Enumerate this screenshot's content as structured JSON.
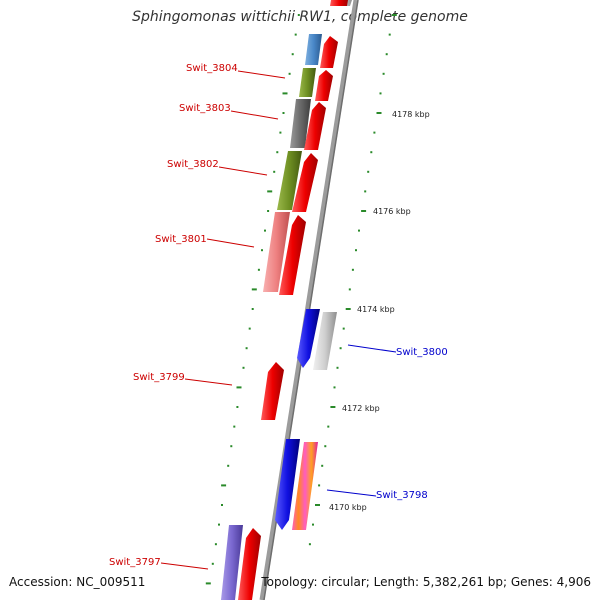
{
  "title": "Sphingomonas wittichii RW1, complete genome",
  "footer": {
    "accession": "Accession: NC_009511",
    "summary": "Topology: circular; Length: 5,382,261 bp; Genes: 4,906"
  },
  "colors": {
    "forward_gene": "#ee0000",
    "reverse_gene": "#1010e0",
    "label_left": "#cc0000",
    "label_right": "#0000cc",
    "tick": "#2a8a2a",
    "backbone": "#8c8c8c"
  },
  "scale": {
    "labels": [
      "4178 kbp",
      "4176 kbp",
      "4174 kbp",
      "4172 kbp",
      "4170 kbp"
    ]
  },
  "genes": [
    {
      "label": "Swit_3804",
      "side": "left"
    },
    {
      "label": "Swit_3803",
      "side": "left"
    },
    {
      "label": "Swit_3802",
      "side": "left"
    },
    {
      "label": "Swit_3801",
      "side": "left"
    },
    {
      "label": "Swit_3800",
      "side": "right"
    },
    {
      "label": "Swit_3799",
      "side": "left"
    },
    {
      "label": "Swit_3798",
      "side": "right"
    },
    {
      "label": "Swit_3797",
      "side": "left"
    }
  ]
}
